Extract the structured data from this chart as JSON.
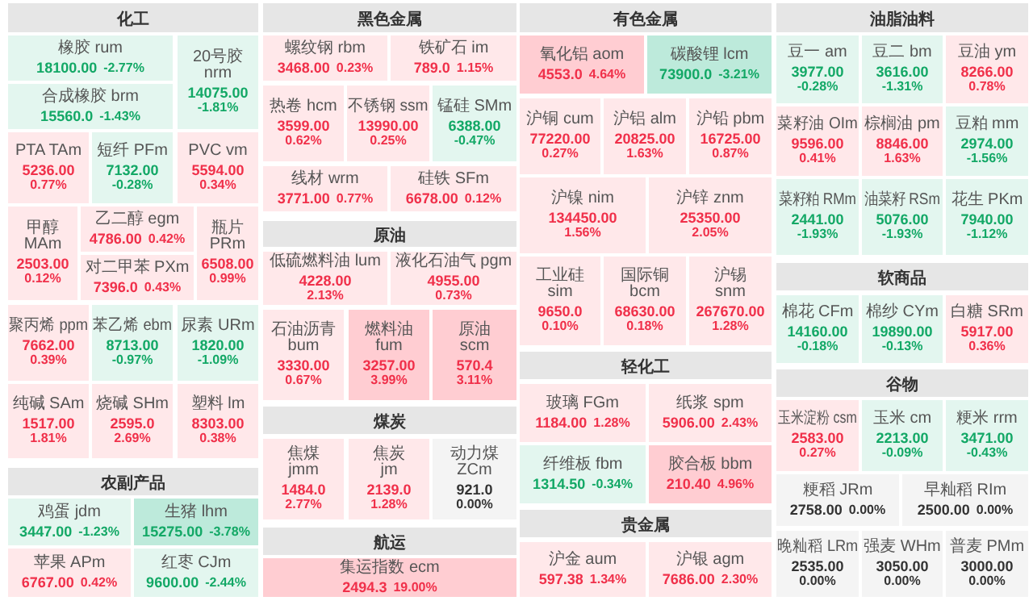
{
  "chart_data": {
    "type": "other",
    "annotations": [
      "化工",
      "农副产品",
      "黑色金属",
      "原油",
      "煤炭",
      "航运",
      "有色金属",
      "轻化工",
      "贵金属",
      "油脂油料",
      "软商品",
      "谷物"
    ],
    "categories": [
      "橡胶 rum",
      "合成橡胶 brm",
      "20号胶 nrm",
      "PTA TAm",
      "短纤 PFm",
      "PVC vm",
      "甲醇 MAm",
      "乙二醇 egm",
      "对二甲苯 PXm",
      "瓶片 PRm",
      "聚丙烯 ppm",
      "苯乙烯 ebm",
      "尿素 URm",
      "纯碱 SAm",
      "烧碱 SHm",
      "塑料 lm",
      "鸡蛋 jdm",
      "生猪 lhm",
      "苹果 APm",
      "红枣 CJm",
      "螺纹钢 rbm",
      "铁矿石 im",
      "热卷 hcm",
      "不锈钢 ssm",
      "锰硅 SMm",
      "线材 wrm",
      "硅铁 SFm",
      "低硫燃料油 lum",
      "液化石油气 pgm",
      "石油沥青 bum",
      "燃料油 fum",
      "原油 scm",
      "焦煤 jmm",
      "焦炭 jm",
      "动力煤 ZCm",
      "集运指数 ecm",
      "氧化铝 aom",
      "碳酸锂 lcm",
      "沪铜 cum",
      "沪铝 alm",
      "沪铅 pbm",
      "沪镍 nim",
      "沪锌 znm",
      "工业硅 sim",
      "国际铜 bcm",
      "沪锡 snm",
      "玻璃 FGm",
      "纸浆 spm",
      "纤维板 fbm",
      "胶合板 bbm",
      "沪金 aum",
      "沪银 agm",
      "豆一 am",
      "豆二 bm",
      "豆油 ym",
      "菜籽油 OIm",
      "棕榈油 pm",
      "豆粕 mm",
      "菜籽粕 RMm",
      "油菜籽 RSm",
      "花生 PKm",
      "棉花 CFm",
      "棉纱 CYm",
      "白糖 SRm",
      "玉米淀粉 csm",
      "玉米 cm",
      "粳米 rrm",
      "粳稻 JRm",
      "早籼稻 RIm",
      "晚籼稻 LRm",
      "强麦 WHm",
      "普麦 PMm"
    ],
    "series": [
      {
        "colors": [
          "#e3f6ef",
          "#e3f6ef",
          "#e3f6ef",
          "#ffe8ea",
          "#e3f6ef",
          "#ffe8ea",
          "#ffe8ea",
          "#ffe8ea",
          "#ffe8ea",
          "#ffe8ea",
          "#ffe8ea",
          "#e3f6ef",
          "#e3f6ef",
          "#ffe8ea",
          "#ffe8ea",
          "#ffe8ea",
          "#e3f6ef",
          "#bdeadb",
          "#ffe8ea",
          "#e3f6ef",
          "#ffe8ea",
          "#ffe8ea",
          "#ffe8ea",
          "#ffe8ea",
          "#e3f6ef",
          "#ffe8ea",
          "#ffe8ea",
          "#ffe8ea",
          "#ffe8ea",
          "#ffe8ea",
          "#ffcdd2",
          "#ffcdd2",
          "#ffe8ea",
          "#ffe8ea",
          "#f4f4f4",
          "#ffcdd2",
          "#ffcdd2",
          "#bdeadb",
          "#ffe8ea",
          "#ffe8ea",
          "#ffe8ea",
          "#ffe8ea",
          "#ffe8ea",
          "#ffe8ea",
          "#ffe8ea",
          "#ffe8ea",
          "#ffe8ea",
          "#ffe8ea",
          "#e3f6ef",
          "#ffcdd2",
          "#ffe8ea",
          "#ffe8ea",
          "#e3f6ef",
          "#e3f6ef",
          "#ffe8ea",
          "#ffe8ea",
          "#ffe8ea",
          "#e3f6ef",
          "#e3f6ef",
          "#e3f6ef",
          "#e3f6ef",
          "#e3f6ef",
          "#e3f6ef",
          "#ffe8ea",
          "#ffe8ea",
          "#e3f6ef",
          "#e3f6ef",
          "#f4f4f4",
          "#f4f4f4",
          "#f4f4f4",
          "#f4f4f4",
          "#f4f4f4"
        ],
        "values": [
          18100,
          15560,
          14075,
          5236,
          7132,
          5594,
          2503,
          4786,
          7396,
          6508,
          7662,
          8713,
          1820,
          1517,
          2595,
          8303,
          3447,
          15275,
          6767,
          9600,
          3468,
          789,
          3599,
          13990,
          6388,
          3771,
          6678,
          4228,
          4955,
          3330,
          3257,
          570.4,
          1484,
          2139,
          921,
          2494.3,
          4553,
          73900,
          77220,
          20825,
          16725,
          134450,
          25350,
          9650,
          68630,
          267670,
          1184,
          5906,
          1314.5,
          210.4,
          597.38,
          7686,
          3977,
          3616,
          8266,
          9596,
          8846,
          2974,
          2441,
          5076,
          7940,
          14160,
          19890,
          5917,
          2583,
          2213,
          3471,
          2758,
          2500,
          2535,
          3050,
          3000
        ],
        "value_labels": [
          "18100.00",
          "15560.0",
          "14075.00",
          "5236.00",
          "7132.00",
          "5594.00",
          "2503.00",
          "4786.00",
          "7396.0",
          "6508.00",
          "7662.00",
          "8713.00",
          "1820.00",
          "1517.00",
          "2595.0",
          "8303.00",
          "3447.00",
          "15275.00",
          "6767.00",
          "9600.00",
          "3468.00",
          "789.0",
          "3599.00",
          "13990.00",
          "6388.00",
          "3771.00",
          "6678.00",
          "4228.00",
          "4955.00",
          "3330.00",
          "3257.00",
          "570.4",
          "1484.0",
          "2139.0",
          "921.0",
          "2494.3",
          "4553.0",
          "73900.0",
          "77220.00",
          "20825.00",
          "16725.00",
          "134450.00",
          "25350.00",
          "9650.0",
          "68630.00",
          "267670.00",
          "1184.00",
          "5906.00",
          "1314.50",
          "210.40",
          "597.38",
          "7686.00",
          "3977.00",
          "3616.00",
          "8266.00",
          "9596.00",
          "8846.00",
          "2974.00",
          "2441.00",
          "5076.00",
          "7940.00",
          "14160.00",
          "19890.00",
          "5917.00",
          "2583.00",
          "2213.00",
          "3471.00",
          "2758.00",
          "2500.00",
          "2535.00",
          "3050.00",
          "3000.00"
        ]
      },
      {
        "values": [
          -2.77,
          -1.43,
          -1.81,
          0.77,
          -0.28,
          0.34,
          0.12,
          0.42,
          0.43,
          0.99,
          0.39,
          -0.97,
          -1.09,
          1.81,
          2.69,
          0.38,
          -1.23,
          -3.78,
          0.42,
          -2.44,
          0.23,
          1.15,
          0.62,
          0.25,
          -0.47,
          0.77,
          0.12,
          2.13,
          0.73,
          0.67,
          3.99,
          3.11,
          2.77,
          1.28,
          0.0,
          19.0,
          4.64,
          -3.21,
          0.27,
          1.63,
          0.87,
          1.56,
          2.05,
          0.1,
          0.18,
          1.28,
          1.28,
          2.43,
          -0.34,
          4.96,
          1.34,
          2.3,
          -0.28,
          -1.31,
          0.78,
          0.41,
          1.63,
          -1.56,
          -1.93,
          -1.93,
          -1.12,
          -0.18,
          -0.13,
          0.36,
          0.27,
          -0.09,
          -0.43,
          0.0,
          0.0,
          0.0,
          0.0,
          0.0
        ],
        "value_labels": [
          "-2.77%",
          "-1.43%",
          "-1.81%",
          "0.77%",
          "-0.28%",
          "0.34%",
          "0.12%",
          "0.42%",
          "0.43%",
          "0.99%",
          "0.39%",
          "-0.97%",
          "-1.09%",
          "1.81%",
          "2.69%",
          "0.38%",
          "-1.23%",
          "-3.78%",
          "0.42%",
          "-2.44%",
          "0.23%",
          "1.15%",
          "0.62%",
          "0.25%",
          "-0.47%",
          "0.77%",
          "0.12%",
          "2.13%",
          "0.73%",
          "0.67%",
          "3.99%",
          "3.11%",
          "2.77%",
          "1.28%",
          "0.00%",
          "19.00%",
          "4.64%",
          "-3.21%",
          "0.27%",
          "1.63%",
          "0.87%",
          "1.56%",
          "2.05%",
          "0.10%",
          "0.18%",
          "1.28%",
          "1.28%",
          "2.43%",
          "-0.34%",
          "4.96%",
          "1.34%",
          "2.30%",
          "-0.28%",
          "-1.31%",
          "0.78%",
          "0.41%",
          "1.63%",
          "-1.56%",
          "-1.93%",
          "-1.93%",
          "-1.12%",
          "-0.18%",
          "-0.13%",
          "0.36%",
          "0.27%",
          "-0.09%",
          "-0.43%",
          "0.00%",
          "0.00%",
          "0.00%",
          "0.00%",
          "0.00%"
        ]
      }
    ]
  }
}
